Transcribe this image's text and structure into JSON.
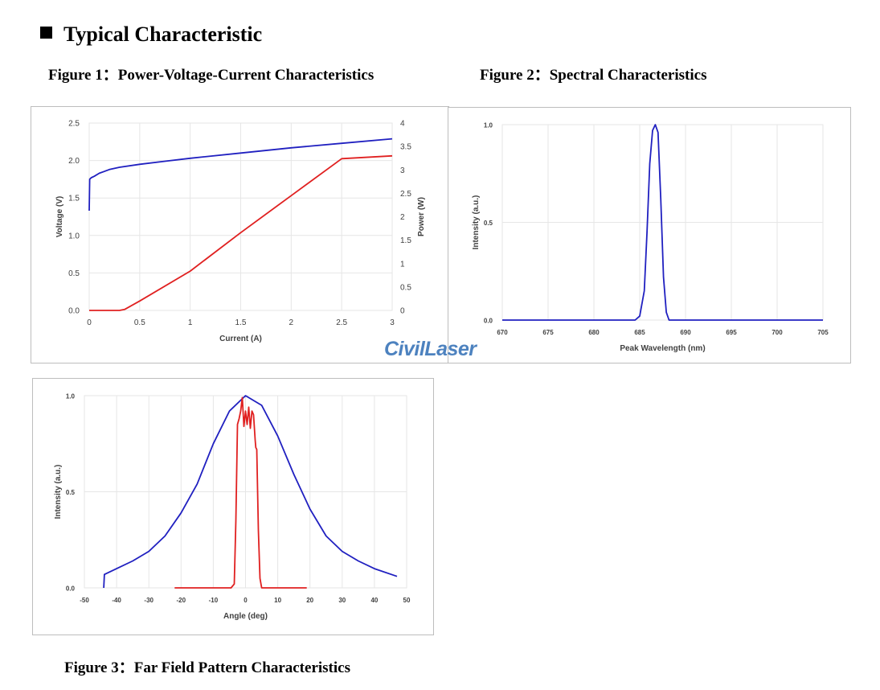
{
  "heading": "Typical Characteristic",
  "captions": {
    "fig1": "Figure 1：Power-Voltage-Current Characteristics",
    "fig2": "Figure 2：Spectral Characteristics",
    "fig3": "Figure 3：Far Field Pattern Characteristics"
  },
  "watermark": "CivilLaser",
  "colors": {
    "voltage": "#2020c0",
    "power": "#e02020",
    "spectrum": "#2020c0",
    "farfield_wide": "#2020c0",
    "farfield_narrow": "#e02020",
    "grid": "#e6e6e6"
  },
  "chart_data": [
    {
      "type": "line",
      "xlabel": "Current (A)",
      "ylabel": "Voltage (V)",
      "y2label": "Power (W)",
      "xlim": [
        0,
        3
      ],
      "ylim": [
        0,
        2.5
      ],
      "y2lim": [
        0,
        4
      ],
      "xticks": [
        "0",
        "0.5",
        "1",
        "1.5",
        "2",
        "2.5",
        "3"
      ],
      "yticks": [
        "0.0",
        "0.5",
        "1.0",
        "1.5",
        "2.0",
        "2.5"
      ],
      "y2ticks": [
        "0",
        "0.5",
        "1",
        "1.5",
        "2",
        "2.5",
        "3",
        "3.5",
        "4"
      ],
      "grid": true,
      "series": [
        {
          "axis": "left",
          "color": "#2020c0",
          "x": [
            0,
            0.005,
            0.02,
            0.05,
            0.1,
            0.2,
            0.3,
            0.5,
            0.75,
            1.0,
            1.5,
            2.0,
            2.5,
            3.0
          ],
          "y": [
            1.33,
            1.75,
            1.77,
            1.79,
            1.83,
            1.88,
            1.91,
            1.95,
            1.99,
            2.03,
            2.1,
            2.17,
            2.23,
            2.29
          ]
        },
        {
          "axis": "right",
          "color": "#e02020",
          "x": [
            0,
            0.3,
            0.35,
            0.4,
            0.5,
            1.0,
            1.5,
            2.0,
            2.5,
            3.0
          ],
          "y": [
            0,
            0,
            0.02,
            0.08,
            0.2,
            0.84,
            1.66,
            2.45,
            3.24,
            3.3
          ]
        }
      ]
    },
    {
      "type": "line",
      "xlabel": "Peak Wavelength (nm)",
      "ylabel": "Intensity (a.u.)",
      "xlim": [
        670,
        705
      ],
      "ylim": [
        0,
        1
      ],
      "xticks": [
        "670",
        "675",
        "680",
        "685",
        "690",
        "695",
        "700",
        "705"
      ],
      "yticks": [
        "0.0",
        "0.5",
        "1.0"
      ],
      "grid": true,
      "series": [
        {
          "color": "#2020c0",
          "x": [
            670,
            684.5,
            685,
            685.5,
            685.8,
            686.1,
            686.4,
            686.7,
            687.0,
            687.3,
            687.6,
            687.9,
            688.2,
            705
          ],
          "y": [
            0,
            0,
            0.02,
            0.15,
            0.45,
            0.8,
            0.97,
            1.0,
            0.96,
            0.62,
            0.22,
            0.04,
            0,
            0
          ]
        }
      ]
    },
    {
      "type": "line",
      "xlabel": "Angle (deg)",
      "ylabel": "Intensity (a.u.)",
      "xlim": [
        -50,
        50
      ],
      "ylim": [
        0,
        1
      ],
      "xticks": [
        "-50",
        "-40",
        "-30",
        "-20",
        "-10",
        "0",
        "10",
        "20",
        "30",
        "40",
        "50"
      ],
      "yticks": [
        "0.0",
        "0.5",
        "1.0"
      ],
      "grid": true,
      "series": [
        {
          "color": "#2020c0",
          "x": [
            -44,
            -43.8,
            -40,
            -35,
            -30,
            -25,
            -20,
            -15,
            -10,
            -5,
            0,
            5,
            10,
            15,
            20,
            25,
            30,
            35,
            40,
            47
          ],
          "y": [
            0,
            0.07,
            0.1,
            0.14,
            0.19,
            0.27,
            0.39,
            0.54,
            0.75,
            0.92,
            1.0,
            0.95,
            0.79,
            0.59,
            0.41,
            0.27,
            0.19,
            0.14,
            0.1,
            0.06
          ]
        },
        {
          "color": "#e02020",
          "x": [
            -22,
            -4.5,
            -3.5,
            -3.0,
            -2.5,
            -2.0,
            -1.5,
            -1.0,
            -0.5,
            0,
            0.5,
            1.0,
            1.5,
            2.0,
            2.5,
            3.0,
            3.2,
            3.5,
            4.0,
            4.5,
            5.0,
            19
          ],
          "y": [
            0,
            0,
            0.02,
            0.35,
            0.85,
            0.88,
            0.92,
            0.99,
            0.84,
            0.92,
            0.85,
            0.94,
            0.83,
            0.92,
            0.9,
            0.77,
            0.73,
            0.72,
            0.3,
            0.05,
            0,
            0
          ]
        }
      ]
    }
  ]
}
